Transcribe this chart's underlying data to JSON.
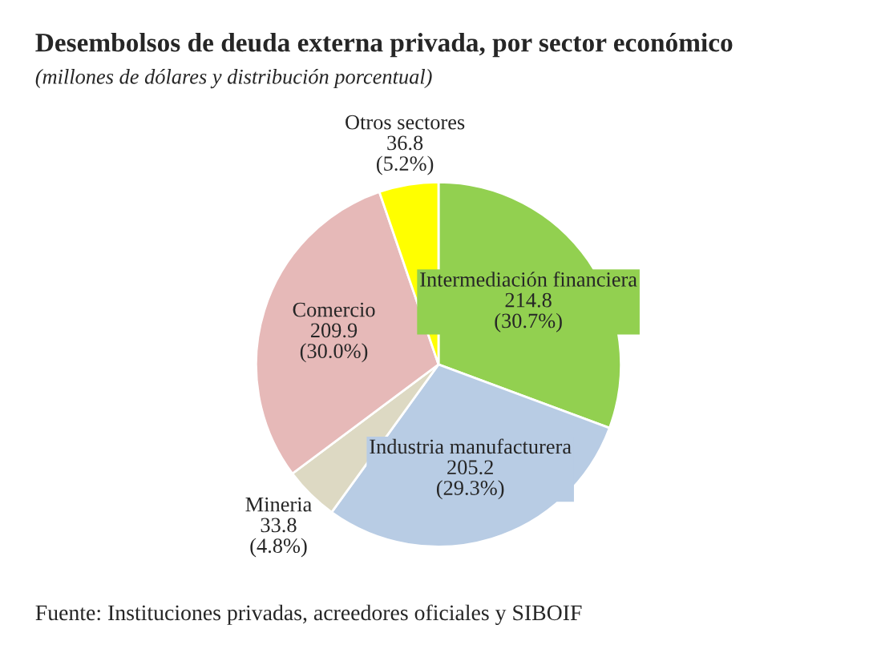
{
  "chart_data": {
    "type": "pie",
    "title": "Desembolsos de deuda externa privada, por sector económico",
    "subtitle": "(millones de dólares y distribución porcentual)",
    "categories": [
      "Intermediación financiera",
      "Industria manufacturera",
      "Mineria",
      "Comercio",
      "Otros sectores"
    ],
    "values": [
      214.8,
      205.2,
      33.8,
      209.9,
      36.8
    ],
    "value_labels": [
      "214.8\n(30.7%)",
      "205.2\n(29.3%)",
      "33.8\n(4.8%)",
      "209.9\n(30.0%)",
      "36.8\n(5.2%)"
    ],
    "colors": [
      "#92d050",
      "#b8cce4",
      "#ddd9c3",
      "#e6b9b8",
      "#ffff00"
    ],
    "legend": false,
    "annotations": [
      "Fuente: Instituciones privadas, acreedores oficiales y SIBOIF"
    ]
  }
}
